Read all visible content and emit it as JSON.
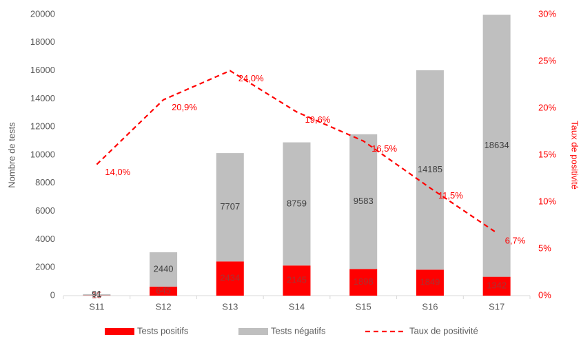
{
  "chart_data": {
    "type": "bar-line",
    "categories": [
      "S11",
      "S12",
      "S13",
      "S14",
      "S15",
      "S16",
      "S17"
    ],
    "series": [
      {
        "name": "Tests positifs",
        "type": "bar",
        "color": "#ff0000",
        "values": [
          15,
          645,
          2434,
          2145,
          1898,
          1849,
          1342
        ]
      },
      {
        "name": "Tests négatifs",
        "type": "bar",
        "color": "#bfbfbf",
        "values": [
          91,
          2440,
          7707,
          8759,
          9583,
          14185,
          18634
        ]
      },
      {
        "name": "Taux de positivité",
        "type": "line",
        "axis": "y2",
        "color": "#ff0000",
        "dashed": true,
        "values": [
          14.0,
          20.9,
          24.0,
          19.6,
          16.5,
          11.5,
          6.7
        ],
        "value_labels": [
          "14,0%",
          "20,9%",
          "24,0%",
          "19,6%",
          "16,5%",
          "11,5%",
          "6,7%"
        ]
      }
    ],
    "stacked": true,
    "ylabel": "Nombre de tests",
    "y2label": "Taux de positivité",
    "ylim": [
      0,
      20000
    ],
    "yticks": [
      0,
      2000,
      4000,
      6000,
      8000,
      10000,
      12000,
      14000,
      16000,
      18000,
      20000
    ],
    "y2lim": [
      0,
      30
    ],
    "y2ticks": [
      {
        "value": 0,
        "label": "0%"
      },
      {
        "value": 5,
        "label": "5%"
      },
      {
        "value": 10,
        "label": "10%"
      },
      {
        "value": 15,
        "label": "15%"
      },
      {
        "value": 20,
        "label": "20%"
      },
      {
        "value": 25,
        "label": "25%"
      },
      {
        "value": 30,
        "label": "30%"
      }
    ],
    "legend": "bottom"
  }
}
